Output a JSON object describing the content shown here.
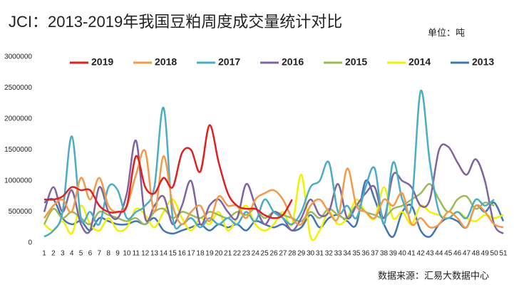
{
  "chart_data": {
    "type": "line",
    "title": "JCI：2013-2019年我国豆粕周度成交量统计对比",
    "unit": "单位：吨",
    "source": "数据来源：汇易大数据中心",
    "categories": [
      "1",
      "2",
      "3",
      "4",
      "5",
      "6",
      "7",
      "8",
      "9",
      "10",
      "11",
      "12",
      "13",
      "14",
      "15",
      "16",
      "17",
      "18",
      "19",
      "20",
      "21",
      "22",
      "23",
      "24",
      "25",
      "26",
      "27",
      "28",
      "29",
      "30",
      "31",
      "32",
      "33",
      "34",
      "35",
      "36",
      "37",
      "38",
      "39",
      "40",
      "41",
      "42",
      "43",
      "44",
      "45",
      "46",
      "47",
      "48",
      "49",
      "50",
      "51"
    ],
    "ylim": [
      0,
      3000000
    ],
    "yticks": [
      0,
      500000,
      1000000,
      1500000,
      2000000,
      2500000,
      3000000
    ],
    "grid": false,
    "legend": "top",
    "series": [
      {
        "name": "2019",
        "color": "#e02020",
        "values": [
          700000,
          700000,
          750000,
          900000,
          850000,
          850000,
          600000,
          500000,
          500000,
          600000,
          1400000,
          900000,
          800000,
          1050000,
          900000,
          1450000,
          1500000,
          1150000,
          1900000,
          1300000,
          800000,
          600000,
          550000,
          550000,
          450000,
          400000,
          450000,
          700000,
          null,
          null,
          null,
          null,
          null,
          null,
          null,
          null,
          null,
          null,
          null,
          null,
          null,
          null,
          null,
          null,
          null,
          null,
          null,
          null,
          null,
          null,
          null
        ]
      },
      {
        "name": "2018",
        "color": "#f39a4a",
        "values": [
          400000,
          600000,
          700000,
          500000,
          1050000,
          700000,
          1050000,
          600000,
          500000,
          600000,
          1100000,
          1480000,
          500000,
          1400000,
          600000,
          300000,
          500000,
          600000,
          350000,
          750000,
          600000,
          600000,
          400000,
          700000,
          800000,
          850000,
          700000,
          400000,
          300000,
          600000,
          700000,
          500000,
          400000,
          1200000,
          600000,
          500000,
          400000,
          700000,
          600000,
          800000,
          300000,
          400000,
          250000,
          300000,
          500000,
          400000,
          250000,
          600000,
          500000,
          300000,
          250000
        ]
      },
      {
        "name": "2017",
        "color": "#4bacc6",
        "values": [
          100000,
          200000,
          500000,
          1720000,
          400000,
          500000,
          300000,
          900000,
          850000,
          400000,
          500000,
          600000,
          900000,
          2180000,
          400000,
          300000,
          400000,
          250000,
          400000,
          300000,
          400000,
          300000,
          500000,
          350000,
          700000,
          500000,
          400000,
          300000,
          500000,
          900000,
          1000000,
          1300000,
          500000,
          600000,
          400000,
          900000,
          1200000,
          300000,
          1300000,
          700000,
          600000,
          2450000,
          1300000,
          500000,
          400000,
          500000,
          400000,
          700000,
          600000,
          700000,
          null
        ]
      },
      {
        "name": "2016",
        "color": "#8064a2",
        "values": [
          500000,
          900000,
          500000,
          850000,
          300000,
          200000,
          900000,
          500000,
          400000,
          800000,
          1650000,
          400000,
          600000,
          750000,
          300000,
          600000,
          1000000,
          300000,
          600000,
          700000,
          500000,
          400000,
          950000,
          600000,
          300000,
          500000,
          400000,
          200000,
          400000,
          700000,
          450000,
          500000,
          950000,
          400000,
          600000,
          800000,
          900000,
          400000,
          1100000,
          1000000,
          900000,
          600000,
          700000,
          1500000,
          1550000,
          1300000,
          1100000,
          1350000,
          1000000,
          300000,
          150000
        ]
      },
      {
        "name": "2015",
        "color": "#9bbb59",
        "values": [
          300000,
          550000,
          400000,
          500000,
          400000,
          300000,
          500000,
          450000,
          400000,
          350000,
          400000,
          300000,
          500000,
          550000,
          400000,
          500000,
          450000,
          400000,
          500000,
          450000,
          400000,
          500000,
          450000,
          550000,
          400000,
          500000,
          450000,
          400000,
          350000,
          500000,
          400000,
          550000,
          450000,
          400000,
          600000,
          500000,
          450000,
          400000,
          550000,
          600000,
          700000,
          800000,
          950000,
          700000,
          500000,
          700000,
          750000,
          550000,
          650000,
          600000,
          null
        ]
      },
      {
        "name": "2014",
        "color": "#f2f200",
        "values": [
          300000,
          200000,
          350000,
          150000,
          600000,
          300000,
          200000,
          400000,
          200000,
          250000,
          550000,
          450000,
          250000,
          500000,
          700000,
          400000,
          200000,
          400000,
          300000,
          500000,
          200000,
          400000,
          600000,
          300000,
          200000,
          300000,
          500000,
          300000,
          1100000,
          100000,
          200000,
          500000,
          300000,
          400000,
          700000,
          500000,
          400000,
          900000,
          400000,
          500000,
          300000,
          600000,
          500000,
          450000,
          400000,
          500000,
          400000,
          350000,
          450000,
          400000,
          450000
        ]
      },
      {
        "name": "2013",
        "color": "#3f76b5",
        "values": [
          650000,
          700000,
          400000,
          300000,
          350000,
          200000,
          400000,
          350000,
          300000,
          300000,
          350000,
          300000,
          400000,
          200000,
          150000,
          200000,
          250000,
          300000,
          200000,
          300000,
          250000,
          300000,
          200000,
          350000,
          300000,
          250000,
          300000,
          200000,
          250000,
          450000,
          250000,
          400000,
          450000,
          350000,
          300000,
          1000000,
          700000,
          300000,
          100000,
          500000,
          600000,
          200000,
          100000,
          300000,
          400000,
          350000,
          250000,
          600000,
          500000,
          650000,
          350000
        ]
      }
    ]
  }
}
